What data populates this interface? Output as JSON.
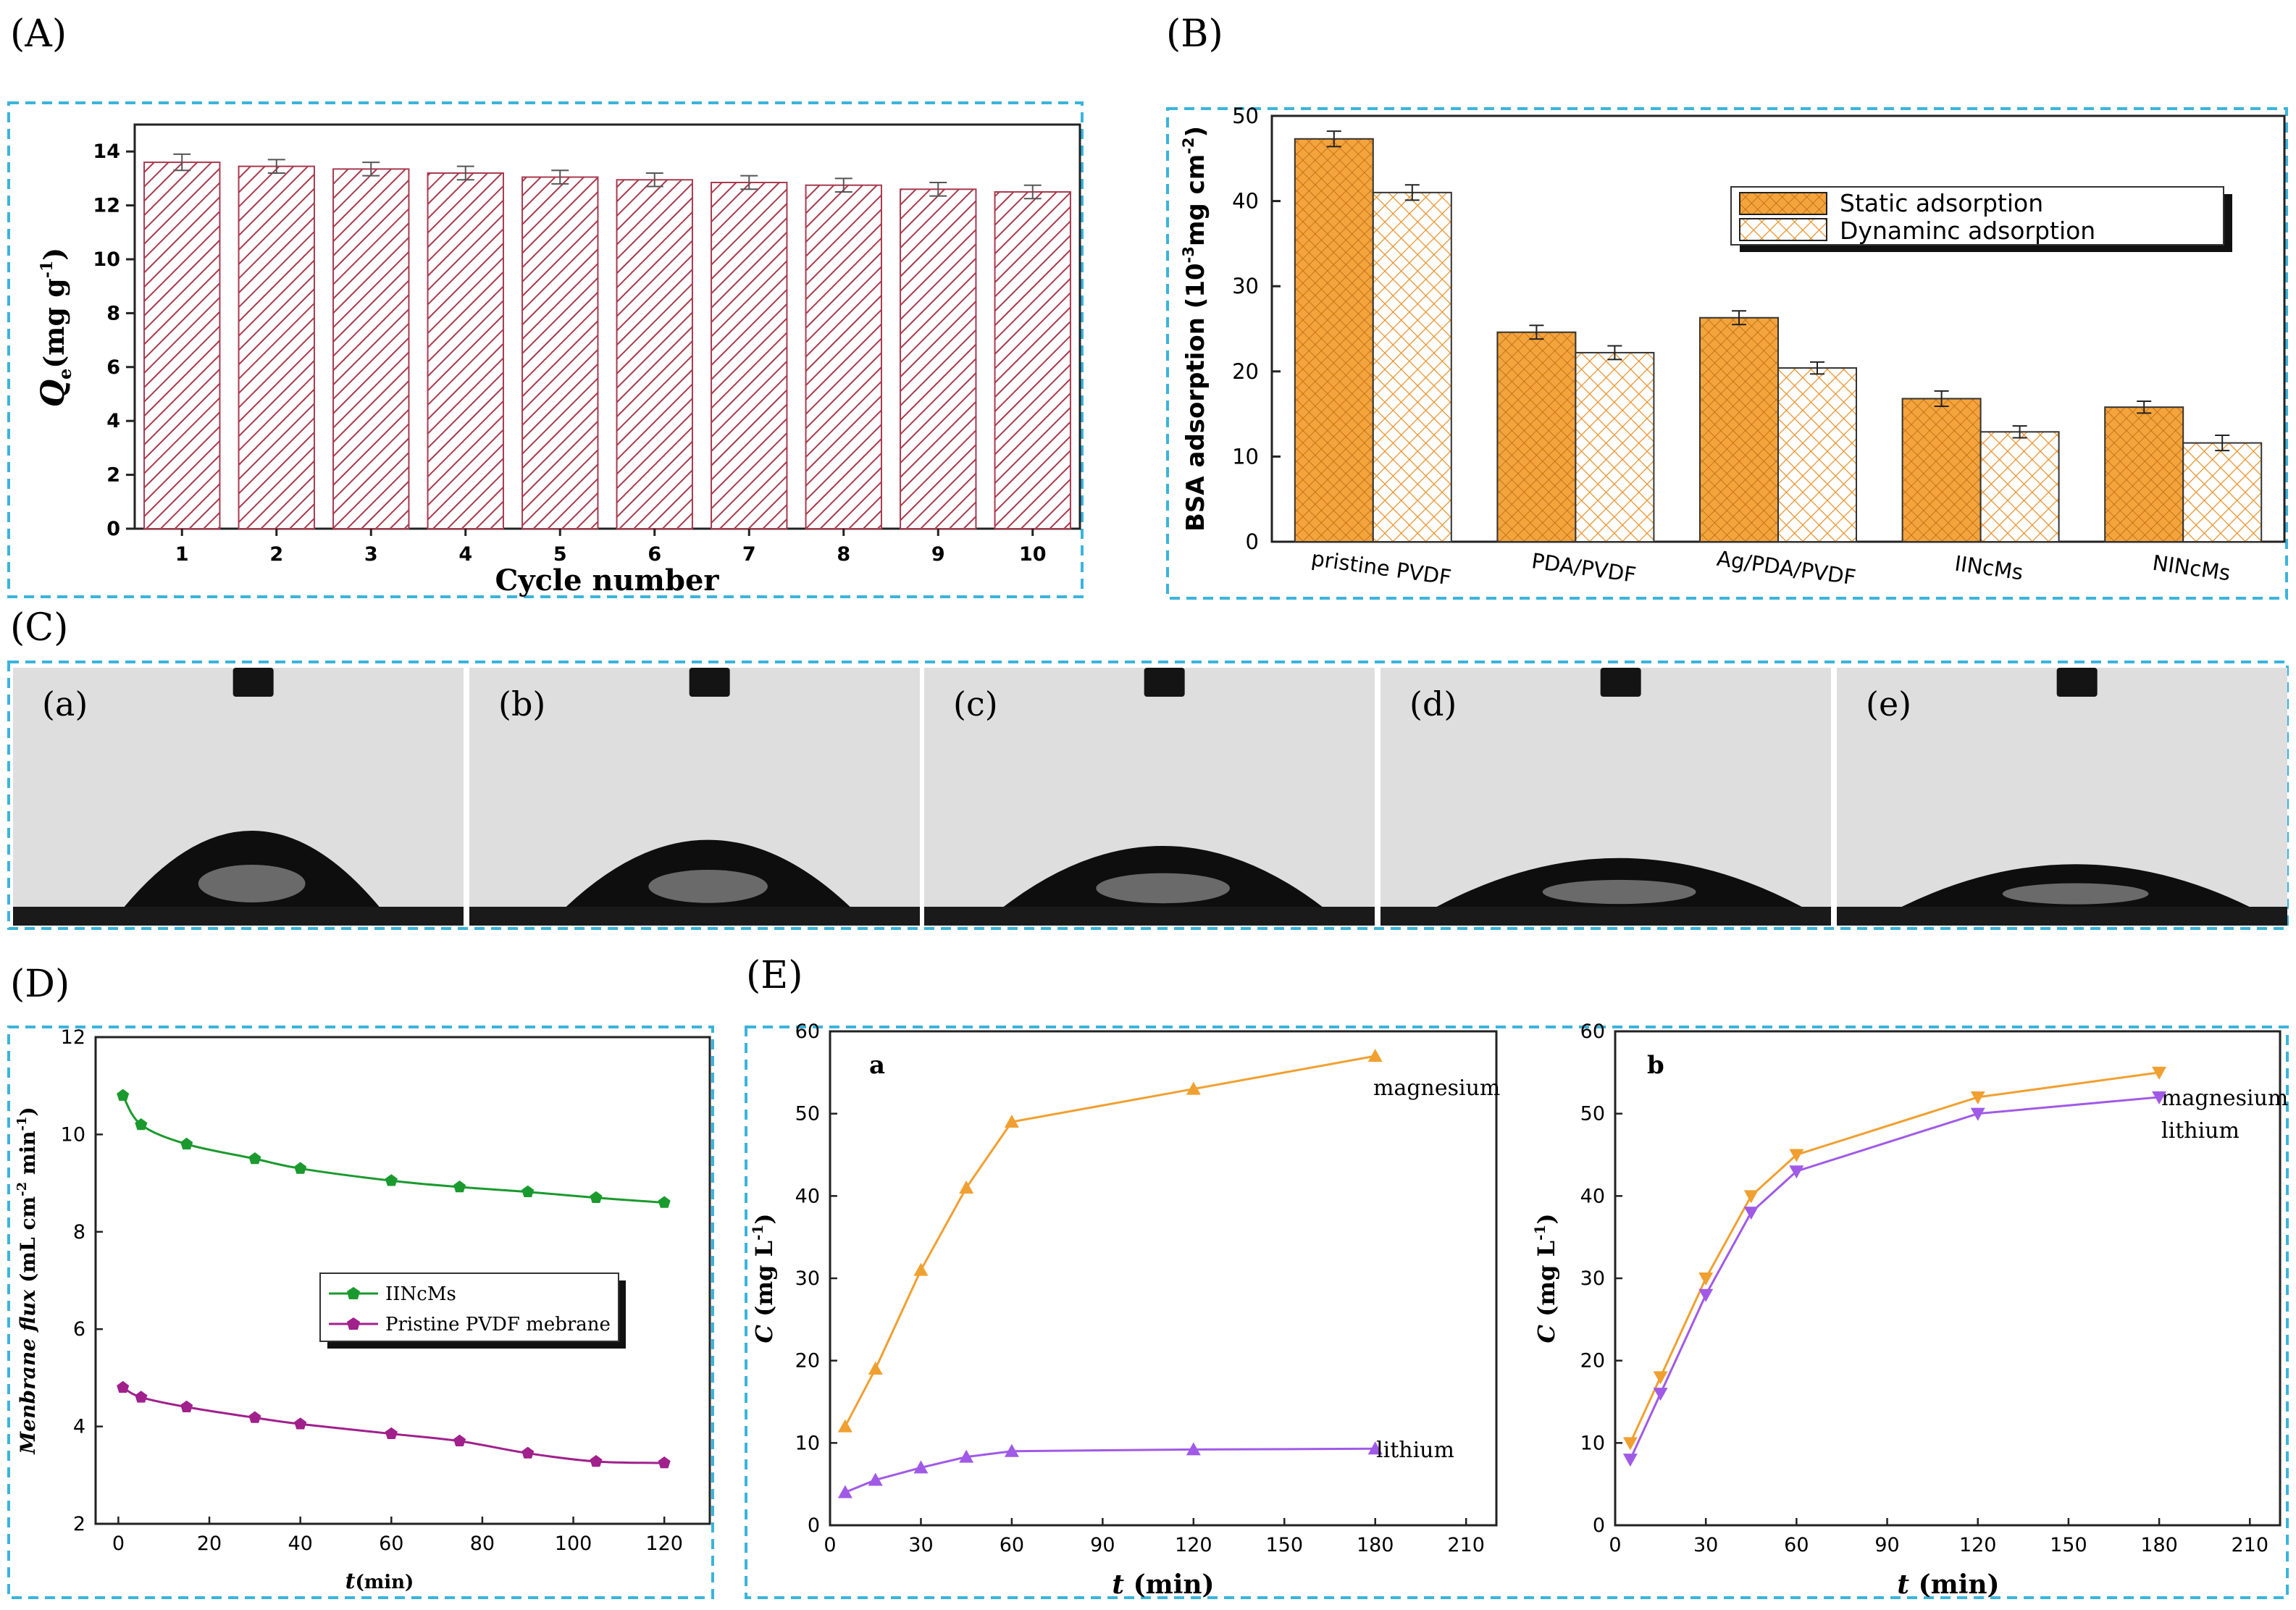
{
  "panel_labels": {
    "A": "(A)",
    "B": "(B)",
    "C": "(C)",
    "D": "(D)",
    "E": "(E)"
  },
  "photo_labels": [
    "(a)",
    "(b)",
    "(c)",
    "(d)",
    "(e)"
  ],
  "colors": {
    "frame": "#3ab4dc",
    "bar_a": "#a83a4e",
    "bar_b": "#f4a43c",
    "green": "#1a9a2e",
    "purple": "#a0208c",
    "orange": "#f0a030",
    "violet": "#a05ae6"
  },
  "chart_data": [
    {
      "id": "A",
      "type": "bar",
      "categories": [
        "1",
        "2",
        "3",
        "4",
        "5",
        "6",
        "7",
        "8",
        "9",
        "10"
      ],
      "values": [
        13.6,
        13.45,
        13.35,
        13.2,
        13.05,
        12.95,
        12.85,
        12.75,
        12.6,
        12.5
      ],
      "errors": [
        0.3,
        0.25,
        0.25,
        0.25,
        0.25,
        0.25,
        0.25,
        0.25,
        0.25,
        0.25
      ],
      "ylim": [
        0,
        15
      ],
      "yticks": [
        0,
        2,
        4,
        6,
        8,
        10,
        12,
        14
      ],
      "xlabel": "Cycle number",
      "ylabel_main": "Q",
      "ylabel_sub": "e",
      "ylabel_unit": "(mg g",
      "ylabel_sup": "-1",
      "ylabel_close": ")"
    },
    {
      "id": "B",
      "type": "bar",
      "categories": [
        "pristine PVDF",
        "PDA/PVDF",
        "Ag/PDA/PVDF",
        "IINcMs",
        "NINcMs"
      ],
      "series": [
        {
          "name": "Static adsorption",
          "values": [
            47.3,
            24.6,
            26.3,
            16.8,
            15.8
          ],
          "errors": [
            0.9,
            0.8,
            0.8,
            0.9,
            0.7
          ]
        },
        {
          "name": "Dynaminc adsorption",
          "values": [
            41.0,
            22.2,
            20.4,
            12.9,
            11.6
          ],
          "errors": [
            0.9,
            0.8,
            0.7,
            0.7,
            0.9
          ]
        }
      ],
      "ylim": [
        0,
        50
      ],
      "yticks": [
        0,
        10,
        20,
        30,
        40,
        50
      ],
      "ylabel_main": "BSA adsorption (10",
      "ylabel_sup": "-3",
      "ylabel_end": "mg cm",
      "ylabel_sup2": "-2",
      "ylabel_close": ")"
    },
    {
      "id": "D",
      "type": "line",
      "series": [
        {
          "name": "IINcMs",
          "x": [
            1,
            5,
            15,
            30,
            40,
            60,
            75,
            90,
            105,
            120
          ],
          "y": [
            10.8,
            10.2,
            9.8,
            9.5,
            9.3,
            9.05,
            8.92,
            8.82,
            8.7,
            8.6
          ]
        },
        {
          "name": "Pristine PVDF mebrane",
          "x": [
            1,
            5,
            15,
            30,
            40,
            60,
            75,
            90,
            105,
            120
          ],
          "y": [
            4.8,
            4.6,
            4.4,
            4.18,
            4.05,
            3.85,
            3.7,
            3.45,
            3.28,
            3.25
          ]
        }
      ],
      "xlim": [
        -5,
        130
      ],
      "ylim": [
        2,
        12
      ],
      "xticks": [
        0,
        20,
        40,
        60,
        80,
        100,
        120
      ],
      "yticks": [
        2,
        4,
        6,
        8,
        10,
        12
      ],
      "xlabel_main": "t",
      "xlabel_unit": "(min)",
      "ylabel_main": "Menbrane flux",
      "ylabel_unit": "(mL cm",
      "ylabel_sup": "-2",
      "ylabel_mid": " min",
      "ylabel_sup2": "-1",
      "ylabel_close": ")"
    },
    {
      "id": "Ea",
      "type": "line",
      "letter": "a",
      "series": [
        {
          "name": "magnesium",
          "x": [
            5,
            15,
            30,
            45,
            60,
            120,
            180
          ],
          "y": [
            12,
            19,
            31,
            41,
            49,
            53,
            57
          ]
        },
        {
          "name": "lithium",
          "x": [
            5,
            15,
            30,
            45,
            60,
            120,
            180
          ],
          "y": [
            4,
            5.5,
            7,
            8.3,
            9,
            9.2,
            9.3
          ]
        }
      ],
      "xlim": [
        0,
        220
      ],
      "ylim": [
        0,
        60
      ],
      "xticks": [
        0,
        30,
        60,
        90,
        120,
        150,
        180,
        210
      ],
      "yticks": [
        0,
        10,
        20,
        30,
        40,
        50,
        60
      ],
      "xlabel_main": "t",
      "xlabel_unit": " (min)",
      "ylabel_main": "C",
      "ylabel_unit": " (mg L",
      "ylabel_sup": "-1",
      "ylabel_close": ")"
    },
    {
      "id": "Eb",
      "type": "line",
      "letter": "b",
      "series": [
        {
          "name": "magnesium",
          "x": [
            5,
            15,
            30,
            45,
            60,
            120,
            180
          ],
          "y": [
            10,
            18,
            30,
            40,
            45,
            52,
            55
          ]
        },
        {
          "name": "lithium",
          "x": [
            5,
            15,
            30,
            45,
            60,
            120,
            180
          ],
          "y": [
            8,
            16,
            28,
            38,
            43,
            50,
            52
          ]
        }
      ],
      "xlim": [
        0,
        220
      ],
      "ylim": [
        0,
        60
      ],
      "xticks": [
        0,
        30,
        60,
        90,
        120,
        150,
        180,
        210
      ],
      "yticks": [
        0,
        10,
        20,
        30,
        40,
        50,
        60
      ],
      "xlabel_main": "t",
      "xlabel_unit": " (min)",
      "ylabel_main": "C",
      "ylabel_unit": " (mg L",
      "ylabel_sup": "-1",
      "ylabel_close": ")"
    }
  ]
}
